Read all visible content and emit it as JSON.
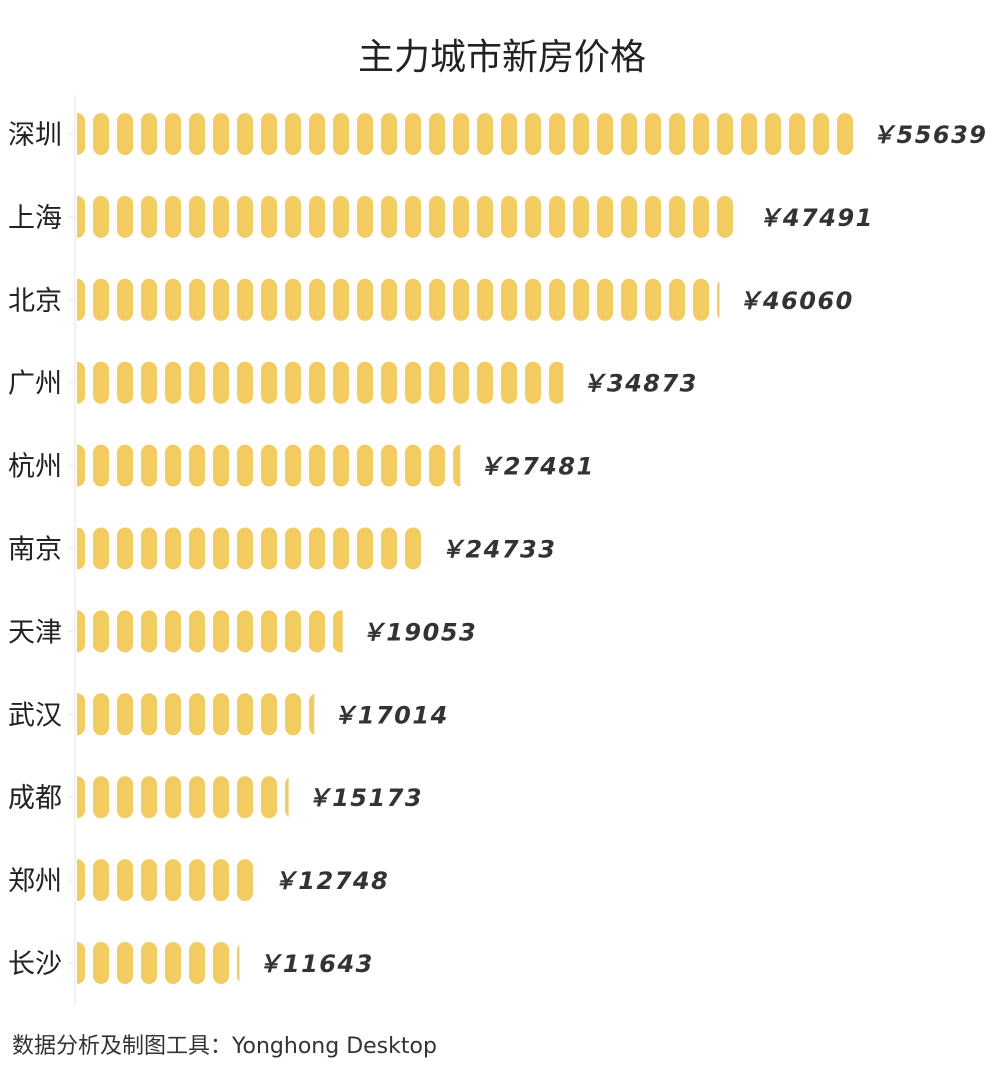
{
  "chart_data": {
    "type": "bar",
    "orientation": "horizontal",
    "style": "pictorial-pills",
    "title": "主力城市新房价格",
    "categories": [
      "深圳",
      "上海",
      "北京",
      "广州",
      "杭州",
      "南京",
      "天津",
      "武汉",
      "成都",
      "郑州",
      "长沙"
    ],
    "values": [
      55639,
      47491,
      46060,
      34873,
      27481,
      24733,
      19053,
      17014,
      15173,
      12748,
      11643
    ],
    "value_prefix": "￥",
    "xlabel": "",
    "ylabel": "",
    "xlim": [
      0,
      55639
    ],
    "grid": false,
    "color": "#F2CB61"
  },
  "footer": "数据分析及制图工具：Yonghong Desktop"
}
